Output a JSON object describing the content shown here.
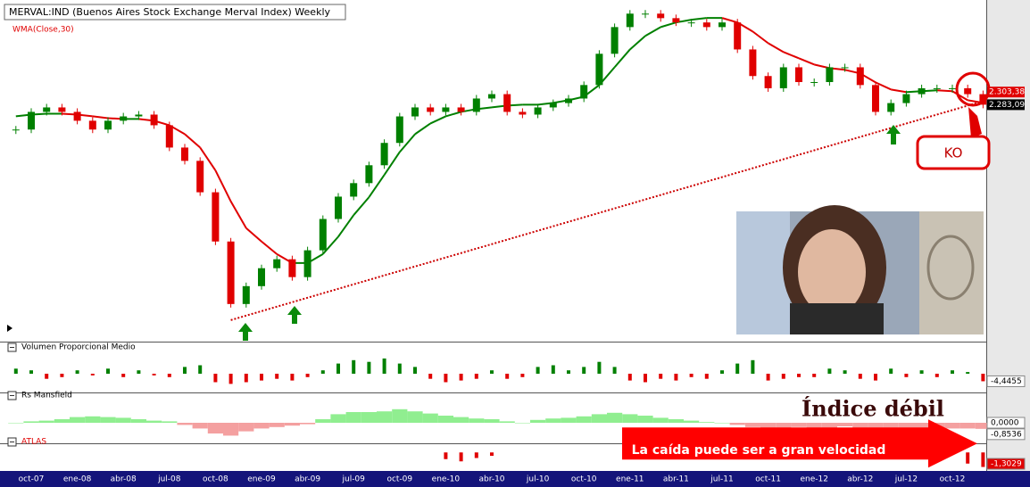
{
  "chart_data": [
    {
      "type": "candlestick",
      "title": "MERVAL:IND (Buenos Aires Stock Exchange Merval Index) Weekly",
      "categories": [
        null,
        "oct-07",
        null,
        null,
        "ene-08",
        null,
        null,
        "abr-08",
        null,
        null,
        "jul-08",
        null,
        null,
        "oct-08",
        null,
        null,
        "ene-09",
        null,
        null,
        "abr-09",
        null,
        null,
        "jul-09",
        null,
        null,
        "oct-09",
        null,
        null,
        "ene-10",
        null,
        null,
        "abr-10",
        null,
        null,
        "jul-10",
        null,
        null,
        "oct-10",
        null,
        null,
        "ene-11",
        null,
        null,
        "abr-11",
        null,
        null,
        "jul-11",
        null,
        null,
        "oct-11",
        null,
        null,
        "ene-12",
        null,
        null,
        "abr-12",
        null,
        null,
        "jul-12",
        null,
        null,
        "oct-12",
        null,
        null
      ],
      "values": [
        2040,
        2210,
        2255,
        2210,
        2123,
        2040,
        2123,
        2165,
        2183,
        2080,
        1880,
        1770,
        1535,
        1228,
        925,
        1003,
        1088,
        1133,
        1045,
        1180,
        1360,
        1505,
        1600,
        1735,
        1920,
        2165,
        2255,
        2210,
        2255,
        2210,
        2348,
        2395,
        2210,
        2183,
        2255,
        2300,
        2348,
        2496,
        2876,
        3246,
        3450,
        3450,
        3380,
        3315,
        3315,
        3246,
        3315,
        2933,
        2600,
        2460,
        2705,
        2530,
        2530,
        2705,
        2705,
        2496,
        2210,
        2300,
        2395,
        2460,
        2460,
        2460,
        2395,
        2283.09
      ],
      "up_color": "#008000",
      "down_color": "#e00000",
      "ma": {
        "name": "WMA(Close,30)",
        "up_color": "#008000",
        "down_color": "#e00000",
        "values": [
          2166,
          2183,
          2192,
          2192,
          2183,
          2166,
          2148,
          2140,
          2140,
          2123,
          2080,
          1998,
          1880,
          1695,
          1473,
          1305,
          1228,
          1160,
          1114,
          1114,
          1160,
          1255,
          1384,
          1501,
          1661,
          1842,
          1998,
          2097,
          2166,
          2210,
          2238,
          2256,
          2274,
          2283,
          2283,
          2302,
          2330,
          2368,
          2496,
          2706,
          2933,
          3119,
          3246,
          3315,
          3356,
          3383,
          3383,
          3315,
          3181,
          3018,
          2899,
          2818,
          2739,
          2695,
          2674,
          2631,
          2526,
          2446,
          2417,
          2427,
          2437,
          2427,
          2330,
          2303.38
        ]
      },
      "price_labels": [
        {
          "value": 2303.38,
          "label": "2.303,38"
        },
        {
          "value": 2283.09,
          "label": "2.283,09"
        }
      ],
      "trendline": {
        "color": "#cc0000",
        "x": [
          14,
          63
        ],
        "values": [
          860,
          2320
        ]
      },
      "annotation": "KO",
      "ylim": [
        780,
        3670
      ],
      "log_scale": true
    },
    {
      "type": "bar",
      "title": "Volumen Proporcional Medio",
      "values": [
        3,
        2,
        -3,
        -2,
        2,
        -1,
        3,
        -2,
        2,
        -1,
        -2,
        4,
        5,
        -5,
        -6,
        -5,
        -4,
        -3,
        -4,
        -2,
        2,
        6,
        8,
        7,
        9,
        6,
        4,
        -3,
        -5,
        -4,
        -3,
        2,
        -3,
        -2,
        4,
        5,
        2,
        4,
        7,
        4,
        -4,
        -5,
        -3,
        -4,
        -2,
        -3,
        2,
        6,
        8,
        -4,
        -3,
        -2,
        -2,
        3,
        2,
        -3,
        -4,
        3,
        -2,
        2,
        -2,
        2,
        1,
        -4.4455
      ],
      "up_color": "#008000",
      "down_color": "#e00000",
      "ylim": [
        -10,
        10
      ],
      "last_label": "-4,4455"
    },
    {
      "type": "area",
      "title": "Rs Mansfield",
      "values": [
        0,
        0.2,
        0.3,
        0.5,
        0.8,
        0.9,
        0.8,
        0.7,
        0.5,
        0.3,
        0.2,
        -0.3,
        -0.8,
        -1.5,
        -1.8,
        -1.2,
        -0.8,
        -0.6,
        -0.4,
        -0.2,
        0.5,
        1.2,
        1.5,
        1.5,
        1.6,
        1.9,
        1.6,
        1.3,
        1.0,
        0.8,
        0.6,
        0.5,
        0.2,
        0,
        0.4,
        0.6,
        0.7,
        0.9,
        1.2,
        1.4,
        1.2,
        1.0,
        0.7,
        0.5,
        0.3,
        0.1,
        0,
        -0.3,
        -0.6,
        -0.8,
        -0.7,
        -0.6,
        -0.7,
        -0.8,
        -0.5,
        -0.7,
        -1.0,
        -0.9,
        -0.8,
        -0.7,
        -0.7,
        -0.8,
        -0.8,
        -0.8536
      ],
      "up_color": "#90ee90",
      "down_color": "#f4a0a0",
      "ylim": [
        -2.5,
        2.5
      ],
      "yticks": [
        {
          "value": 0,
          "label": "0,0000"
        }
      ],
      "last_label": "-0,8536",
      "annotation": "Índice débil"
    },
    {
      "type": "bar",
      "title": "ATLAS",
      "values": [
        null,
        null,
        null,
        null,
        null,
        null,
        null,
        null,
        null,
        null,
        null,
        null,
        null,
        null,
        null,
        null,
        null,
        null,
        null,
        null,
        null,
        null,
        null,
        null,
        null,
        null,
        null,
        null,
        -0.6,
        -0.8,
        -0.5,
        -0.3,
        null,
        null,
        null,
        null,
        null,
        null,
        null,
        null,
        null,
        null,
        null,
        null,
        null,
        null,
        null,
        null,
        null,
        null,
        null,
        null,
        null,
        null,
        null,
        null,
        null,
        null,
        null,
        null,
        null,
        null,
        -1.0,
        -1.3029
      ],
      "up_color": "#008000",
      "down_color": "#e00000",
      "ylim": [
        -1.5,
        0.1
      ],
      "last_label": "-1,3029",
      "annotation": "La caída puede ser a gran velocidad"
    }
  ]
}
